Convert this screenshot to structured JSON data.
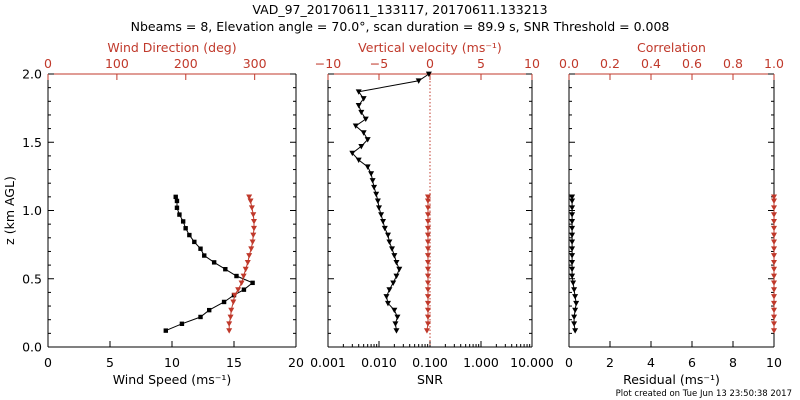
{
  "title_line1": "VAD_97_20170611_133117, 20170611.133213",
  "title_line2": "Nbeams = 8, Elevation angle = 70.0°, scan duration = 89.9 s, SNR Threshold = 0.008",
  "footer": "Plot created on Tue Jun 13 23:50:38 2017",
  "colors": {
    "axis": "#000000",
    "accent": "#c0392b"
  },
  "chart_data": [
    {
      "type": "line",
      "ylabel": "z (km AGL)",
      "ylim": [
        0,
        2.0
      ],
      "yticks": [
        "0.0",
        "0.5",
        "1.0",
        "1.5",
        "2.0"
      ],
      "bottom_axis": {
        "label": "Wind Speed (ms⁻¹)",
        "lim": [
          0,
          20
        ],
        "ticks": [
          0,
          5,
          10,
          15,
          20
        ],
        "tick_labels": [
          "0",
          "5",
          "10",
          "15",
          "20"
        ]
      },
      "top_axis": {
        "label": "Wind Direction (deg)",
        "lim": [
          0,
          360
        ],
        "ticks": [
          0,
          100,
          200,
          300
        ],
        "tick_labels": [
          "0",
          "100",
          "200",
          "300"
        ]
      },
      "series": [
        {
          "color": "#000000",
          "axis": "bottom",
          "marker": "square",
          "points": [
            {
              "x": 9.5,
              "y": 0.12
            },
            {
              "x": 10.8,
              "y": 0.17
            },
            {
              "x": 12.3,
              "y": 0.22
            },
            {
              "x": 13.0,
              "y": 0.27
            },
            {
              "x": 14.2,
              "y": 0.33
            },
            {
              "x": 15.0,
              "y": 0.38
            },
            {
              "x": 15.8,
              "y": 0.42
            },
            {
              "x": 16.5,
              "y": 0.47
            },
            {
              "x": 15.2,
              "y": 0.52
            },
            {
              "x": 14.3,
              "y": 0.57
            },
            {
              "x": 13.4,
              "y": 0.62
            },
            {
              "x": 12.6,
              "y": 0.67
            },
            {
              "x": 12.3,
              "y": 0.72
            },
            {
              "x": 11.8,
              "y": 0.77
            },
            {
              "x": 11.4,
              "y": 0.82
            },
            {
              "x": 11.1,
              "y": 0.87
            },
            {
              "x": 10.9,
              "y": 0.92
            },
            {
              "x": 10.6,
              "y": 0.97
            },
            {
              "x": 10.4,
              "y": 1.02
            },
            {
              "x": 10.4,
              "y": 1.07
            },
            {
              "x": 10.3,
              "y": 1.1
            }
          ]
        },
        {
          "color": "#c0392b",
          "axis": "top",
          "marker": "triangle",
          "points": [
            {
              "x": 263,
              "y": 0.12
            },
            {
              "x": 263,
              "y": 0.17
            },
            {
              "x": 265,
              "y": 0.22
            },
            {
              "x": 266,
              "y": 0.27
            },
            {
              "x": 269,
              "y": 0.33
            },
            {
              "x": 271,
              "y": 0.38
            },
            {
              "x": 276,
              "y": 0.42
            },
            {
              "x": 281,
              "y": 0.47
            },
            {
              "x": 284,
              "y": 0.52
            },
            {
              "x": 287,
              "y": 0.57
            },
            {
              "x": 290,
              "y": 0.62
            },
            {
              "x": 292,
              "y": 0.67
            },
            {
              "x": 295,
              "y": 0.72
            },
            {
              "x": 297,
              "y": 0.77
            },
            {
              "x": 298,
              "y": 0.82
            },
            {
              "x": 299,
              "y": 0.87
            },
            {
              "x": 299,
              "y": 0.92
            },
            {
              "x": 298,
              "y": 0.97
            },
            {
              "x": 296,
              "y": 1.02
            },
            {
              "x": 294,
              "y": 1.07
            },
            {
              "x": 292,
              "y": 1.1
            }
          ]
        }
      ]
    },
    {
      "type": "line",
      "ylim": [
        0,
        2.0
      ],
      "bottom_axis": {
        "label": "SNR",
        "scale": "log",
        "lim": [
          0.001,
          10
        ],
        "ticks": [
          0.001,
          0.01,
          0.1,
          1,
          10
        ],
        "tick_labels": [
          "0.001",
          "0.010",
          "0.100",
          "1.000",
          "10.000"
        ]
      },
      "top_axis": {
        "label": "Vertical velocity (ms⁻¹)",
        "lim": [
          -10,
          10
        ],
        "ticks": [
          -10,
          -5,
          0,
          5,
          10
        ],
        "tick_labels": [
          "−10",
          "−5",
          "0",
          "5",
          "10"
        ]
      },
      "reference_line": {
        "axis": "top",
        "x": 0,
        "style": "dotted"
      },
      "series": [
        {
          "color": "#000000",
          "axis": "bottom",
          "marker": "triangle",
          "points": [
            {
              "x": 0.022,
              "y": 0.12
            },
            {
              "x": 0.021,
              "y": 0.17
            },
            {
              "x": 0.023,
              "y": 0.22
            },
            {
              "x": 0.02,
              "y": 0.27
            },
            {
              "x": 0.015,
              "y": 0.32
            },
            {
              "x": 0.014,
              "y": 0.37
            },
            {
              "x": 0.016,
              "y": 0.42
            },
            {
              "x": 0.019,
              "y": 0.47
            },
            {
              "x": 0.022,
              "y": 0.52
            },
            {
              "x": 0.025,
              "y": 0.57
            },
            {
              "x": 0.022,
              "y": 0.62
            },
            {
              "x": 0.02,
              "y": 0.67
            },
            {
              "x": 0.018,
              "y": 0.72
            },
            {
              "x": 0.016,
              "y": 0.77
            },
            {
              "x": 0.015,
              "y": 0.82
            },
            {
              "x": 0.013,
              "y": 0.87
            },
            {
              "x": 0.012,
              "y": 0.92
            },
            {
              "x": 0.011,
              "y": 0.97
            },
            {
              "x": 0.01,
              "y": 1.02
            },
            {
              "x": 0.0095,
              "y": 1.07
            },
            {
              "x": 0.0088,
              "y": 1.12
            },
            {
              "x": 0.008,
              "y": 1.17
            },
            {
              "x": 0.0075,
              "y": 1.22
            },
            {
              "x": 0.007,
              "y": 1.27
            },
            {
              "x": 0.006,
              "y": 1.32
            },
            {
              "x": 0.004,
              "y": 1.37
            },
            {
              "x": 0.003,
              "y": 1.42
            },
            {
              "x": 0.0045,
              "y": 1.47
            },
            {
              "x": 0.006,
              "y": 1.52
            },
            {
              "x": 0.005,
              "y": 1.57
            },
            {
              "x": 0.0035,
              "y": 1.62
            },
            {
              "x": 0.0055,
              "y": 1.67
            },
            {
              "x": 0.0045,
              "y": 1.72
            },
            {
              "x": 0.004,
              "y": 1.77
            },
            {
              "x": 0.005,
              "y": 1.82
            },
            {
              "x": 0.004,
              "y": 1.87
            },
            {
              "x": 0.06,
              "y": 1.95
            },
            {
              "x": 0.095,
              "y": 2.0
            }
          ]
        },
        {
          "color": "#c0392b",
          "axis": "top",
          "marker": "triangle",
          "points": [
            {
              "x": -0.3,
              "y": 0.12
            },
            {
              "x": -0.2,
              "y": 0.17
            },
            {
              "x": -0.2,
              "y": 0.22
            },
            {
              "x": -0.2,
              "y": 0.27
            },
            {
              "x": -0.2,
              "y": 0.32
            },
            {
              "x": -0.2,
              "y": 0.37
            },
            {
              "x": -0.2,
              "y": 0.42
            },
            {
              "x": -0.2,
              "y": 0.47
            },
            {
              "x": -0.2,
              "y": 0.52
            },
            {
              "x": -0.2,
              "y": 0.57
            },
            {
              "x": -0.2,
              "y": 0.62
            },
            {
              "x": -0.2,
              "y": 0.67
            },
            {
              "x": -0.2,
              "y": 0.72
            },
            {
              "x": -0.2,
              "y": 0.77
            },
            {
              "x": -0.2,
              "y": 0.82
            },
            {
              "x": -0.2,
              "y": 0.87
            },
            {
              "x": -0.2,
              "y": 0.92
            },
            {
              "x": -0.2,
              "y": 0.97
            },
            {
              "x": -0.2,
              "y": 1.02
            },
            {
              "x": -0.2,
              "y": 1.07
            },
            {
              "x": -0.2,
              "y": 1.1
            }
          ]
        }
      ]
    },
    {
      "type": "line",
      "ylim": [
        0,
        2.0
      ],
      "bottom_axis": {
        "label": "Residual (ms⁻¹)",
        "lim": [
          0,
          10
        ],
        "ticks": [
          0,
          2,
          4,
          6,
          8,
          10
        ],
        "tick_labels": [
          "0",
          "2",
          "4",
          "6",
          "8",
          "10"
        ]
      },
      "top_axis": {
        "label": "Correlation",
        "lim": [
          0,
          1
        ],
        "ticks": [
          0,
          0.2,
          0.4,
          0.6,
          0.8,
          1.0
        ],
        "tick_labels": [
          "0.0",
          "0.2",
          "0.4",
          "0.6",
          "0.8",
          "1.0"
        ]
      },
      "series": [
        {
          "color": "#000000",
          "axis": "bottom",
          "marker": "triangle",
          "points": [
            {
              "x": 0.3,
              "y": 0.12
            },
            {
              "x": 0.25,
              "y": 0.17
            },
            {
              "x": 0.25,
              "y": 0.22
            },
            {
              "x": 0.3,
              "y": 0.27
            },
            {
              "x": 0.35,
              "y": 0.32
            },
            {
              "x": 0.3,
              "y": 0.37
            },
            {
              "x": 0.25,
              "y": 0.42
            },
            {
              "x": 0.2,
              "y": 0.47
            },
            {
              "x": 0.15,
              "y": 0.52
            },
            {
              "x": 0.15,
              "y": 0.57
            },
            {
              "x": 0.15,
              "y": 0.62
            },
            {
              "x": 0.15,
              "y": 0.67
            },
            {
              "x": 0.15,
              "y": 0.72
            },
            {
              "x": 0.15,
              "y": 0.77
            },
            {
              "x": 0.15,
              "y": 0.82
            },
            {
              "x": 0.15,
              "y": 0.87
            },
            {
              "x": 0.15,
              "y": 0.92
            },
            {
              "x": 0.15,
              "y": 0.97
            },
            {
              "x": 0.15,
              "y": 1.02
            },
            {
              "x": 0.15,
              "y": 1.07
            },
            {
              "x": 0.15,
              "y": 1.1
            }
          ]
        },
        {
          "color": "#c0392b",
          "axis": "top",
          "marker": "triangle",
          "points": [
            {
              "x": 1.0,
              "y": 0.12
            },
            {
              "x": 1.0,
              "y": 0.17
            },
            {
              "x": 1.0,
              "y": 0.22
            },
            {
              "x": 1.0,
              "y": 0.27
            },
            {
              "x": 1.0,
              "y": 0.32
            },
            {
              "x": 1.0,
              "y": 0.37
            },
            {
              "x": 1.0,
              "y": 0.42
            },
            {
              "x": 1.0,
              "y": 0.47
            },
            {
              "x": 1.0,
              "y": 0.52
            },
            {
              "x": 1.0,
              "y": 0.57
            },
            {
              "x": 1.0,
              "y": 0.62
            },
            {
              "x": 1.0,
              "y": 0.67
            },
            {
              "x": 1.0,
              "y": 0.72
            },
            {
              "x": 1.0,
              "y": 0.77
            },
            {
              "x": 1.0,
              "y": 0.82
            },
            {
              "x": 1.0,
              "y": 0.87
            },
            {
              "x": 1.0,
              "y": 0.92
            },
            {
              "x": 1.0,
              "y": 0.97
            },
            {
              "x": 1.0,
              "y": 1.02
            },
            {
              "x": 1.0,
              "y": 1.07
            },
            {
              "x": 1.0,
              "y": 1.1
            }
          ]
        }
      ]
    }
  ]
}
